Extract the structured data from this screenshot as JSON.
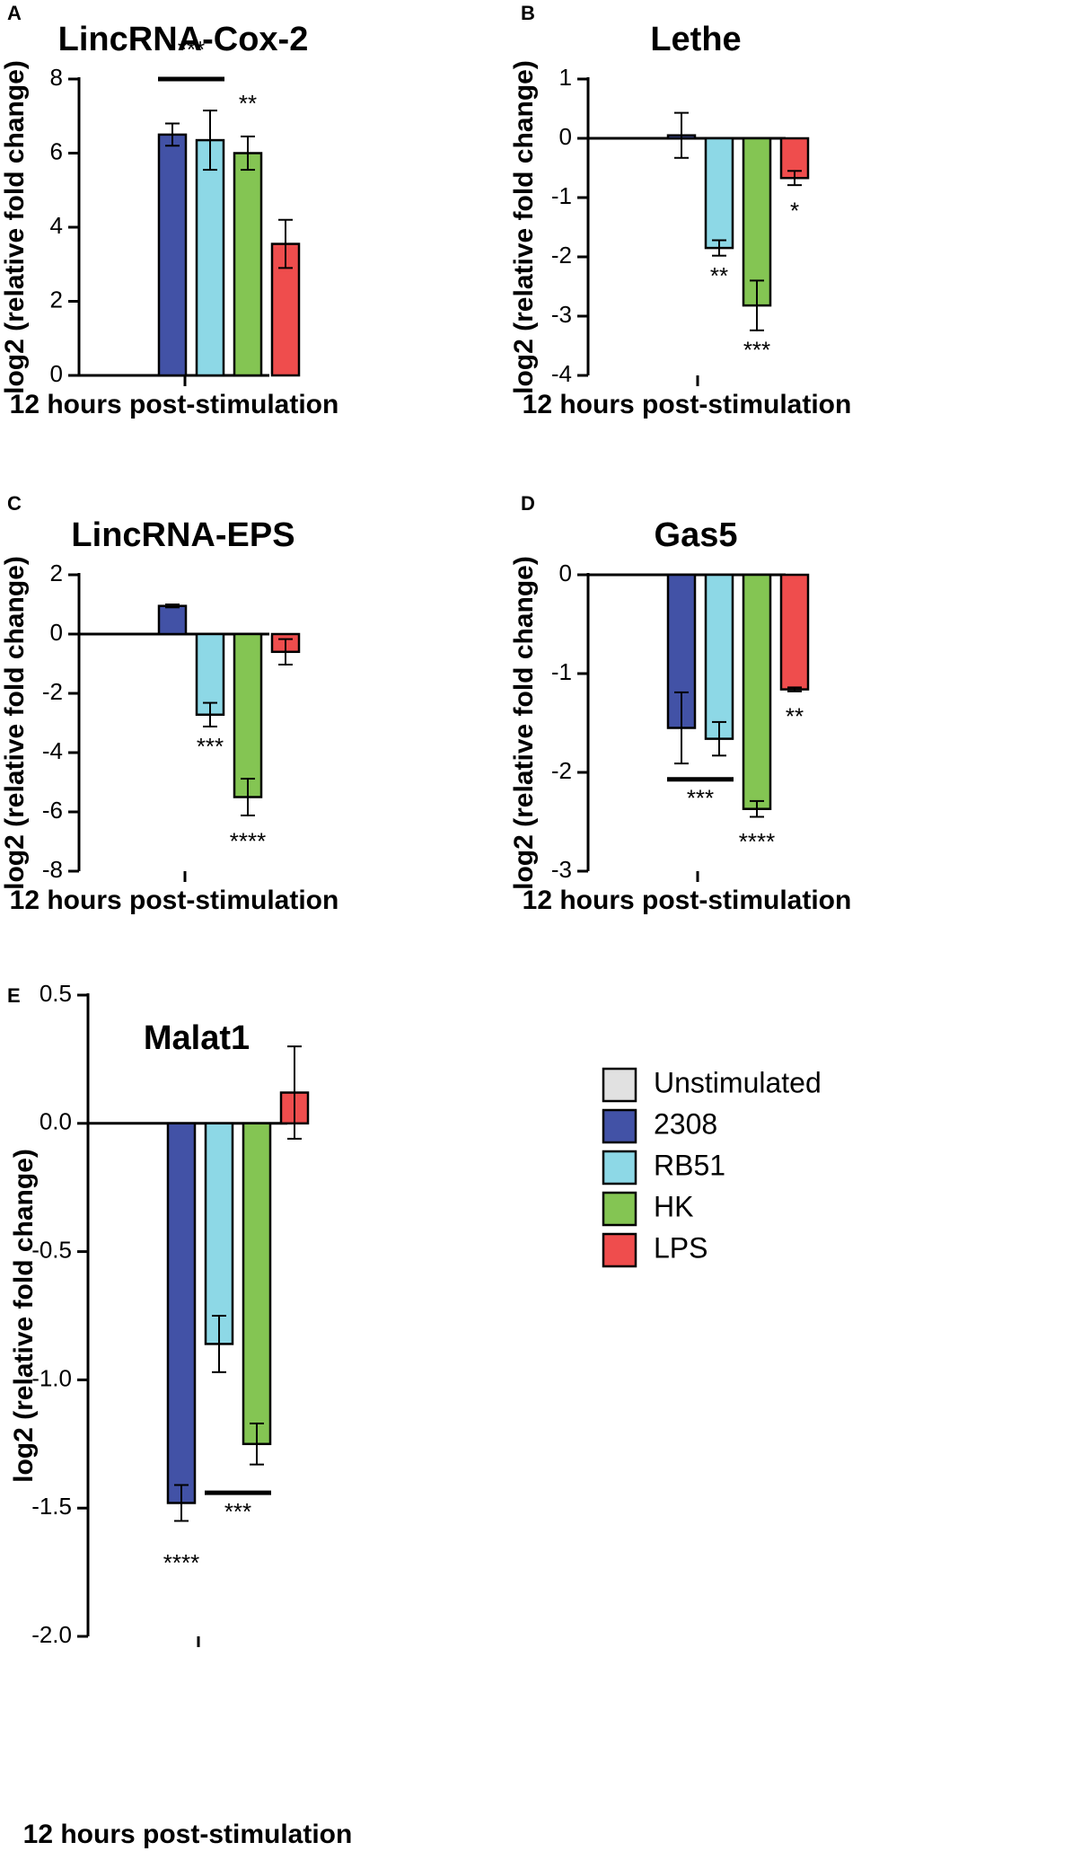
{
  "colors": {
    "Unstimulated": "#e1e1e1",
    "2308": "#4252a6",
    "RB51": "#8dd8e6",
    "HK": "#84c553",
    "LPS": "#ef4d4d",
    "ink": "#000000"
  },
  "chart_data": [
    {
      "panel": "A",
      "type": "bar",
      "title": "LincRNA-Cox-2",
      "xlabel": "12 hours post-stimulation",
      "ylabel": "log2 (relative fold change)",
      "ylim": [
        0,
        8
      ],
      "yticks": [
        0,
        2,
        4,
        6,
        8
      ],
      "ytick_labels": [
        "0",
        "2",
        "4",
        "6",
        "8"
      ],
      "categories": [
        "Unstimulated",
        "2308",
        "RB51",
        "HK",
        "LPS"
      ],
      "values": [
        0,
        6.5,
        6.35,
        6.0,
        3.55
      ],
      "errors": [
        0,
        0.3,
        0.8,
        0.45,
        0.65
      ],
      "significance": [
        {
          "label": "***",
          "bars": [
            "2308",
            "RB51"
          ],
          "line": true,
          "value": 8.0
        },
        {
          "label": "**",
          "bars": [
            "HK"
          ],
          "line": false,
          "value": 7.3
        }
      ]
    },
    {
      "panel": "B",
      "type": "bar",
      "title": "Lethe",
      "xlabel": "12 hours post-stimulation",
      "ylabel": "log2 (relative fold change)",
      "ylim": [
        -4,
        1
      ],
      "yticks": [
        -4,
        -3,
        -2,
        -1,
        0,
        1
      ],
      "ytick_labels": [
        "-4",
        "-3",
        "-2",
        "-1",
        "0",
        "1"
      ],
      "categories": [
        "Unstimulated",
        "2308",
        "RB51",
        "HK",
        "LPS"
      ],
      "values": [
        0,
        0.05,
        -1.85,
        -2.82,
        -0.67
      ],
      "errors": [
        0,
        0.38,
        0.13,
        0.42,
        0.12
      ],
      "significance": [
        {
          "label": "**",
          "bars": [
            "RB51"
          ],
          "line": false,
          "value": -2.35
        },
        {
          "label": "***",
          "bars": [
            "HK"
          ],
          "line": false,
          "value": -3.6
        },
        {
          "label": "*",
          "bars": [
            "LPS"
          ],
          "line": false,
          "value": -1.25
        }
      ]
    },
    {
      "panel": "C",
      "type": "bar",
      "title": "LincRNA-EPS",
      "xlabel": "12 hours post-stimulation",
      "ylabel": "log2 (relative fold change)",
      "ylim": [
        -8,
        2
      ],
      "yticks": [
        -8,
        -6,
        -4,
        -2,
        0,
        2
      ],
      "ytick_labels": [
        "-8",
        "-6",
        "-4",
        "-2",
        "0",
        "2"
      ],
      "categories": [
        "Unstimulated",
        "2308",
        "RB51",
        "HK",
        "LPS"
      ],
      "values": [
        0,
        0.95,
        -2.72,
        -5.5,
        -0.6
      ],
      "errors": [
        0,
        0.05,
        0.4,
        0.62,
        0.43
      ],
      "significance": [
        {
          "label": "***",
          "bars": [
            "RB51"
          ],
          "line": false,
          "value": -3.85
        },
        {
          "label": "****",
          "bars": [
            "HK"
          ],
          "line": false,
          "value": -7.05
        }
      ]
    },
    {
      "panel": "D",
      "type": "bar",
      "title": "Gas5",
      "xlabel": "12 hours post-stimulation",
      "ylabel": "log2 (relative fold change)",
      "ylim": [
        -3,
        0
      ],
      "yticks": [
        -3,
        -2,
        -1,
        0
      ],
      "ytick_labels": [
        "-3",
        "-2",
        "-1",
        "0"
      ],
      "categories": [
        "Unstimulated",
        "2308",
        "RB51",
        "HK",
        "LPS"
      ],
      "values": [
        0,
        -1.55,
        -1.66,
        -2.37,
        -1.16
      ],
      "errors": [
        0,
        0.36,
        0.17,
        0.08,
        0.02
      ],
      "significance": [
        {
          "label": "***",
          "bars": [
            "2308",
            "RB51"
          ],
          "line": true,
          "value": -2.07
        },
        {
          "label": "****",
          "bars": [
            "HK"
          ],
          "line": false,
          "value": -2.72
        },
        {
          "label": "**",
          "bars": [
            "LPS"
          ],
          "line": false,
          "value": -1.45
        }
      ]
    },
    {
      "panel": "E",
      "type": "bar",
      "title": "Malat1",
      "xlabel": "12 hours post-stimulation",
      "ylabel": "log2 (relative fold change)",
      "ylim": [
        -2.0,
        0.5
      ],
      "yticks": [
        -2.0,
        -1.5,
        -1.0,
        -0.5,
        0.0,
        0.5
      ],
      "ytick_labels": [
        "-2.0",
        "-1.5",
        "-1.0",
        "-0.5",
        "0.0",
        "0.5"
      ],
      "categories": [
        "Unstimulated",
        "2308",
        "RB51",
        "HK",
        "LPS"
      ],
      "values": [
        0,
        -1.48,
        -0.86,
        -1.25,
        0.12
      ],
      "errors": [
        0,
        0.07,
        0.11,
        0.08,
        0.18
      ],
      "significance": [
        {
          "label": "****",
          "bars": [
            "2308"
          ],
          "line": false,
          "value": -1.72
        },
        {
          "label": "***",
          "bars": [
            "RB51",
            "HK"
          ],
          "line": true,
          "value": -1.44
        }
      ]
    }
  ],
  "legend": {
    "items": [
      "Unstimulated",
      "2308",
      "RB51",
      "HK",
      "LPS"
    ]
  }
}
